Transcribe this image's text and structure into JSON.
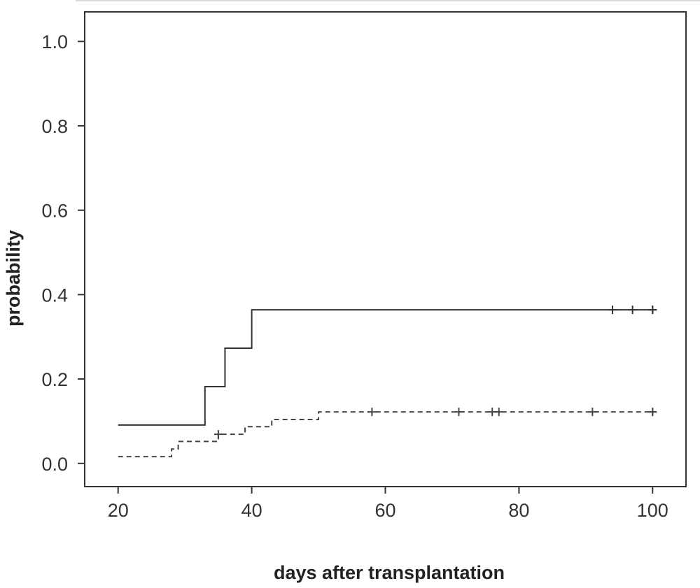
{
  "chart_data": {
    "type": "line",
    "title": "",
    "xlabel": "days after transplantation",
    "ylabel": "probability",
    "xlim": [
      15,
      105
    ],
    "ylim": [
      -0.055,
      1.07
    ],
    "x_ticks": [
      20,
      40,
      60,
      80,
      100
    ],
    "y_ticks": [
      0.0,
      0.2,
      0.4,
      0.6,
      0.8,
      1.0
    ],
    "x_tick_labels": [
      "20",
      "40",
      "60",
      "80",
      "100"
    ],
    "y_tick_labels": [
      "0.0",
      "0.2",
      "0.4",
      "0.6",
      "0.8",
      "1.0"
    ],
    "grid": false,
    "legend": false,
    "step": true,
    "series": [
      {
        "style": "solid",
        "color": "#333333",
        "x": [
          20,
          33,
          36,
          40,
          100
        ],
        "y": [
          0.091,
          0.182,
          0.273,
          0.364,
          0.364
        ],
        "censor_x": [
          94,
          97,
          100,
          100
        ],
        "censor_y": [
          0.364,
          0.364,
          0.364,
          0.364
        ]
      },
      {
        "style": "dashed",
        "color": "#444444",
        "x": [
          20,
          28,
          29,
          35,
          39,
          43,
          50,
          100
        ],
        "y": [
          0.016,
          0.034,
          0.052,
          0.069,
          0.087,
          0.104,
          0.122,
          0.122
        ],
        "censor_x": [
          35,
          58,
          71,
          76,
          77,
          91,
          100,
          100
        ],
        "censor_y": [
          0.069,
          0.122,
          0.122,
          0.122,
          0.122,
          0.122,
          0.122,
          0.122
        ]
      }
    ]
  }
}
